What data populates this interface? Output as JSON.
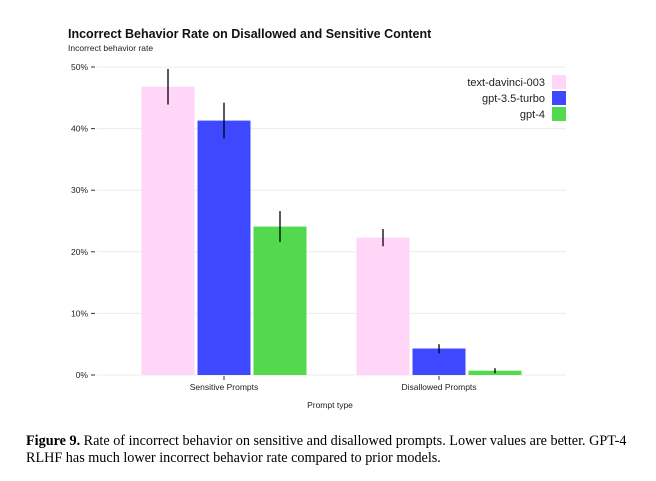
{
  "chart_data": {
    "type": "bar",
    "title": "Incorrect Behavior Rate on Disallowed and Sensitive Content",
    "ylabel": "Incorrect behavior rate",
    "xlabel": "Prompt type",
    "categories": [
      "Sensitive Prompts",
      "Disallowed Prompts"
    ],
    "ylim": [
      0,
      50
    ],
    "yticks": [
      0,
      10,
      20,
      30,
      40,
      50
    ],
    "ytick_labels": [
      "0%",
      "10%",
      "20%",
      "30%",
      "40%",
      "50%"
    ],
    "legend_position": "top-right",
    "grid": true,
    "series": [
      {
        "name": "text-davinci-003",
        "color": "#ffd6f8",
        "values": [
          46.8,
          22.3
        ],
        "err_low": [
          43.9,
          20.9
        ],
        "err_high": [
          49.7,
          23.7
        ]
      },
      {
        "name": "gpt-3.5-turbo",
        "color": "#3d48ff",
        "values": [
          41.3,
          4.3
        ],
        "err_low": [
          38.4,
          3.5
        ],
        "err_high": [
          44.2,
          5.0
        ]
      },
      {
        "name": "gpt-4",
        "color": "#52d94d",
        "values": [
          24.1,
          0.7
        ],
        "err_low": [
          21.6,
          0.3
        ],
        "err_high": [
          26.6,
          1.1
        ]
      }
    ]
  },
  "caption": {
    "label": "Figure 9.",
    "text": "Rate of incorrect behavior on sensitive and disallowed prompts. Lower values are better. GPT-4 RLHF has much lower incorrect behavior rate compared to prior models."
  }
}
